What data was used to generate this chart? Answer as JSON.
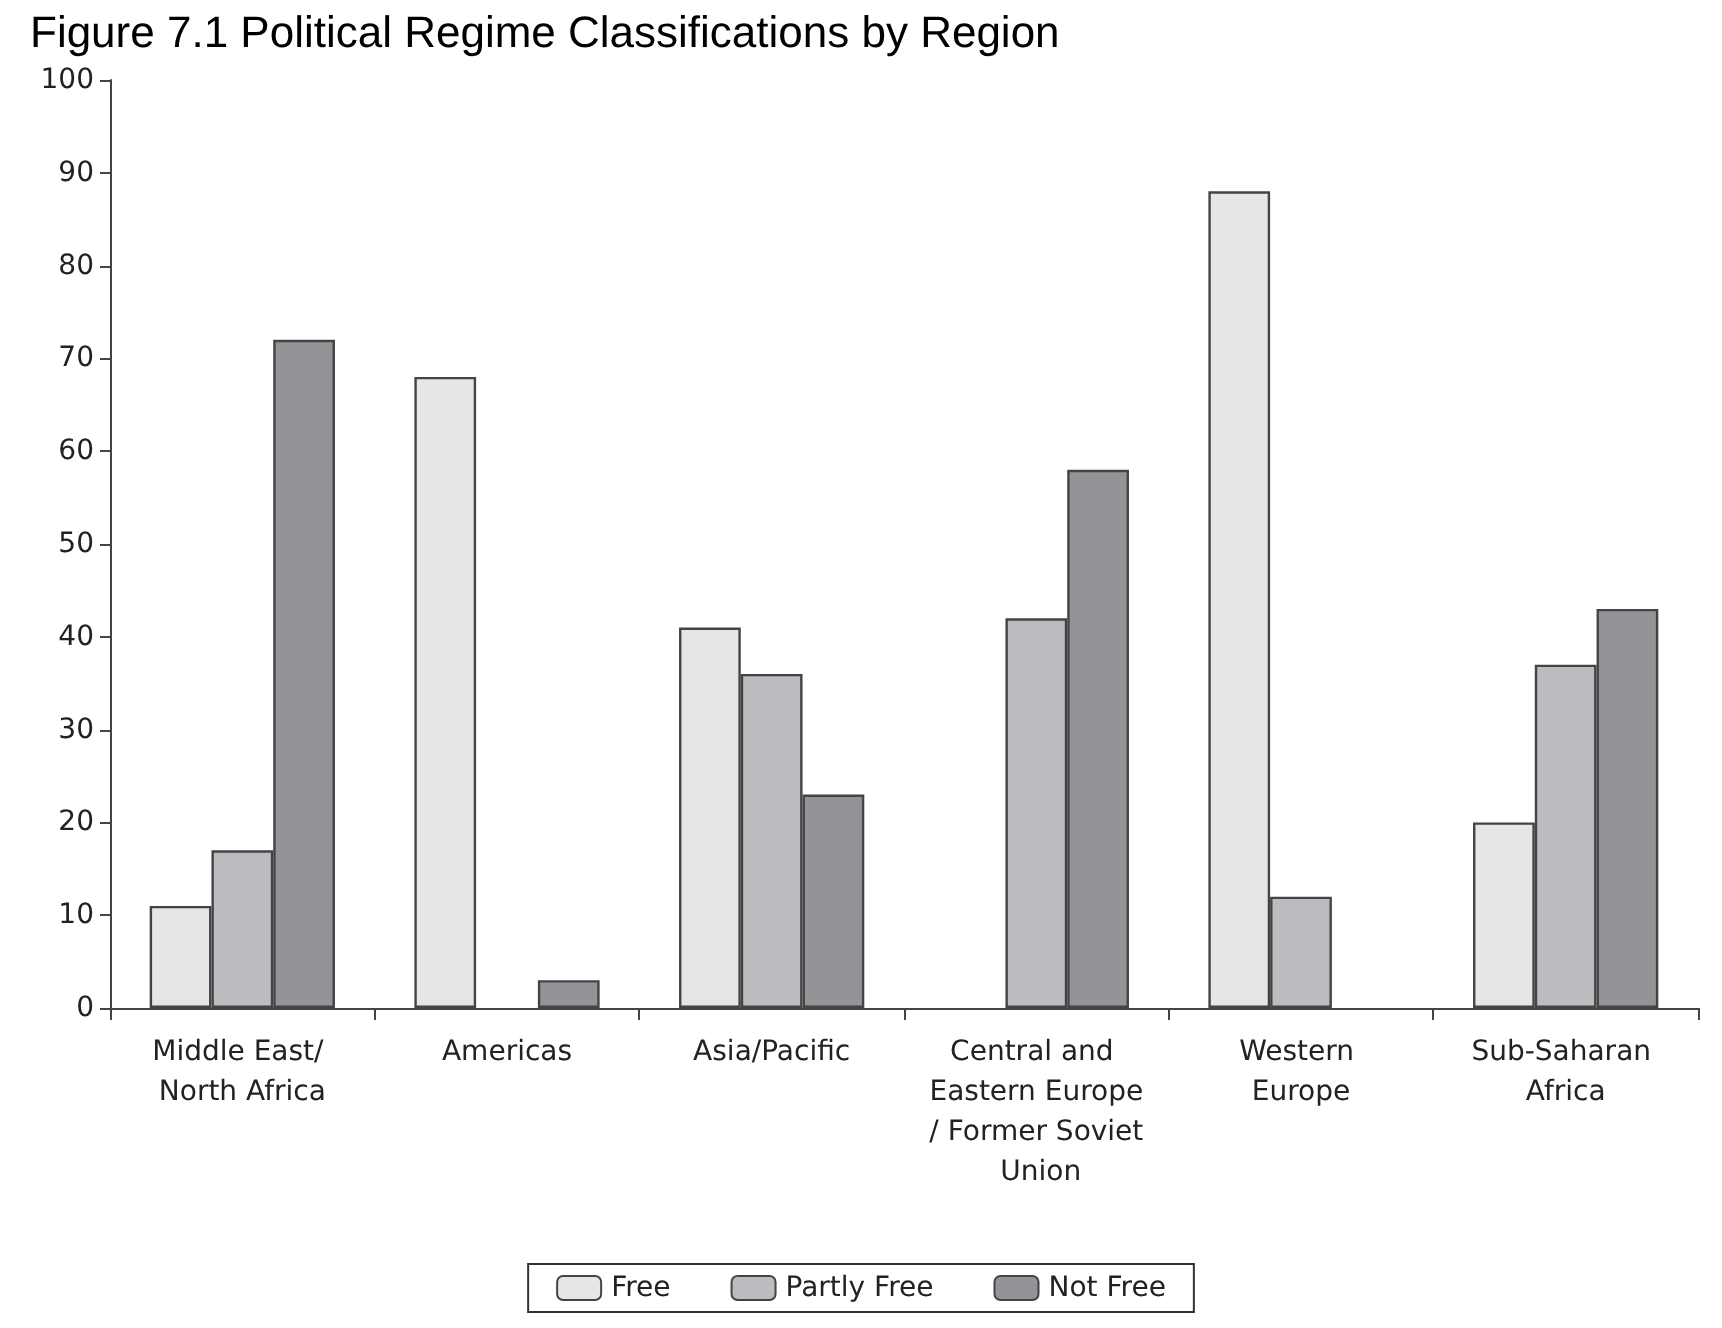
{
  "chart_data": {
    "type": "bar",
    "title": "Figure 7.1 Political Regime Classifications by Region",
    "categories": [
      "Middle East/ North Africa",
      "Americas",
      "Asia/Pacific",
      "Central and Eastern Europe/ Former Soviet Union",
      "Western Europe",
      "Sub-Saharan Africa"
    ],
    "series": [
      {
        "name": "Free",
        "color": "#e6e6e6",
        "values": [
          11,
          68,
          41,
          0,
          88,
          20
        ]
      },
      {
        "name": "Partly Free",
        "color": "#bbbcc0",
        "values": [
          17,
          0,
          36,
          42,
          12,
          37
        ]
      },
      {
        "name": "Not Free",
        "color": "#939498",
        "values": [
          72,
          3,
          23,
          58,
          0,
          43
        ]
      }
    ],
    "ylim": [
      0,
      100
    ],
    "yticks": [
      0,
      10,
      20,
      30,
      40,
      50,
      60,
      70,
      80,
      90,
      100
    ],
    "grid": false,
    "legend": "bottom"
  }
}
